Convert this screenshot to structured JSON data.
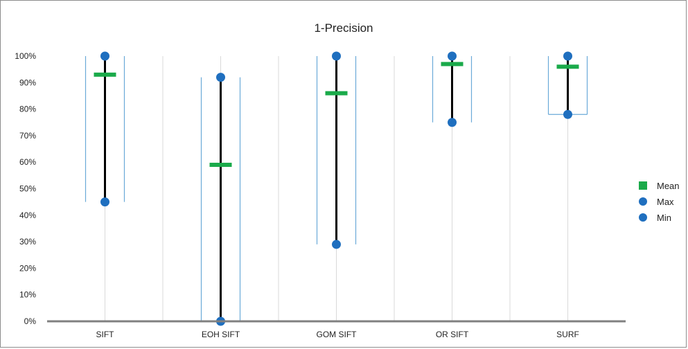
{
  "chart_data": {
    "type": "scatter",
    "title": "1-Precision",
    "categories": [
      "SIFT",
      "EOH SIFT",
      "GOM SIFT",
      "OR SIFT",
      "SURF"
    ],
    "series": [
      {
        "name": "Mean",
        "values": [
          93,
          59,
          86,
          97,
          96
        ]
      },
      {
        "name": "Max",
        "values": [
          100,
          92,
          100,
          100,
          100
        ]
      },
      {
        "name": "Min",
        "values": [
          45,
          0,
          29,
          75,
          78
        ]
      }
    ],
    "yticks": [
      "0%",
      "10%",
      "20%",
      "30%",
      "40%",
      "50%",
      "60%",
      "70%",
      "80%",
      "90%",
      "100%"
    ],
    "ylim": [
      0,
      100
    ],
    "xlabel": "",
    "ylabel": "",
    "grid": "vertical",
    "legend_position": "right",
    "colors": {
      "mean": "#1aaa4a",
      "max": "#1f6fbf",
      "min": "#1f6fbf",
      "range_line": "#000000",
      "bracket": "#6aaad8",
      "gridline": "#d9d9d9",
      "axis": "#808080"
    }
  }
}
